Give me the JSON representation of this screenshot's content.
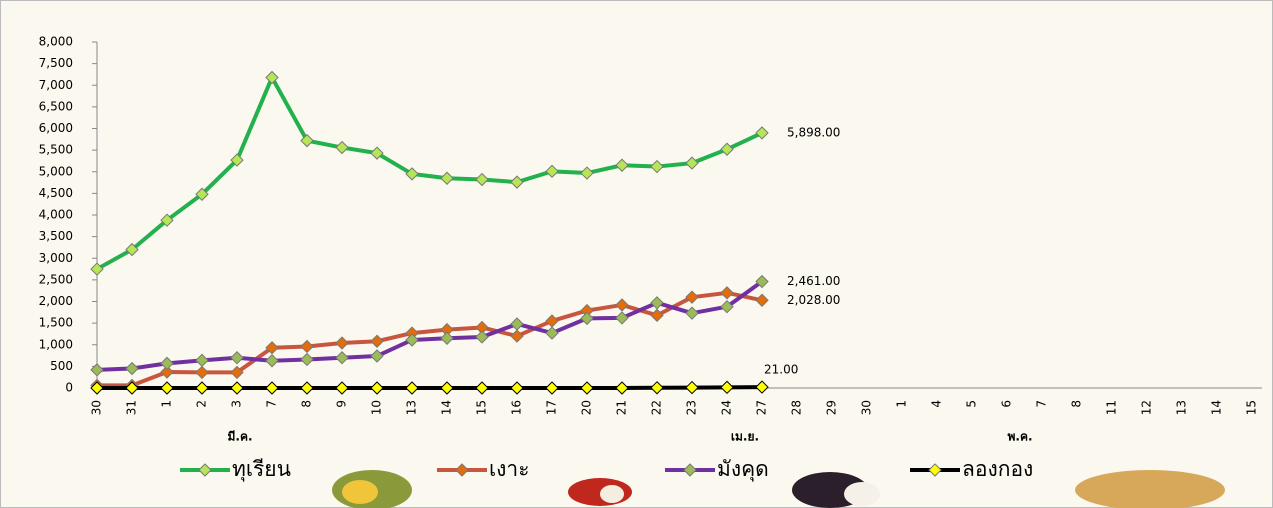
{
  "chart_data": {
    "type": "line",
    "categories": [
      "30",
      "31",
      "1",
      "2",
      "3",
      "7",
      "8",
      "9",
      "10",
      "13",
      "14",
      "15",
      "16",
      "17",
      "20",
      "21",
      "22",
      "23",
      "24",
      "27",
      "28",
      "29",
      "30",
      "1",
      "4",
      "5",
      "6",
      "7",
      "8",
      "11",
      "12",
      "13",
      "14",
      "15"
    ],
    "group_labels": [
      "มี.ค.",
      "เม.ย.",
      "พ.ค."
    ],
    "ylim": [
      0,
      8000
    ],
    "yticks": [
      0,
      500,
      {
        "value": 1000,
        "label": "1,000"
      },
      {
        "value": 1500,
        "label": "1,500"
      },
      {
        "value": 2000,
        "label": "2,000"
      },
      {
        "value": 2500,
        "label": "2,500"
      },
      {
        "value": 3000,
        "label": "3,000"
      },
      {
        "value": 3500,
        "label": "3,500"
      },
      {
        "value": 4000,
        "label": "4,000"
      },
      {
        "value": 4500,
        "label": "4,500"
      },
      {
        "value": 5000,
        "label": "5,000"
      },
      {
        "value": 5500,
        "label": "5,500"
      },
      {
        "value": 6000,
        "label": "6,000"
      },
      {
        "value": 6500,
        "label": "6,500"
      },
      {
        "value": 7000,
        "label": "7,000"
      },
      {
        "value": 7500,
        "label": "7,500"
      },
      {
        "value": 8000,
        "label": "8,000"
      }
    ],
    "series": [
      {
        "name": "ทุเรียน",
        "color": "#22b14c",
        "marker_color": "#b5e655",
        "label_color": "#22b14c",
        "values": [
          2750,
          3200,
          3880,
          4480,
          5270,
          7180,
          5720,
          5560,
          5430,
          4950,
          4850,
          4820,
          4760,
          5010,
          4970,
          5150,
          5120,
          5200,
          5520,
          5898,
          null,
          null,
          null,
          null,
          null,
          null,
          null,
          null,
          null,
          null,
          null,
          null,
          null,
          null
        ],
        "value_labels": [
          null,
          null,
          null,
          null,
          null,
          null,
          null,
          null,
          null,
          null,
          null,
          null,
          null,
          null,
          null,
          null,
          null,
          null,
          null,
          "5,898.00",
          null,
          null,
          null,
          null,
          null,
          null,
          null,
          null,
          null,
          null,
          null,
          null,
          null,
          null
        ]
      },
      {
        "name": "เงาะ",
        "color": "#c8553d",
        "marker_color": "#e46c0a",
        "label_color": "#e8231f",
        "values": [
          60,
          60,
          370,
          360,
          360,
          930,
          960,
          1040,
          1080,
          1270,
          1350,
          1400,
          1200,
          1550,
          1790,
          1920,
          1680,
          2100,
          2200,
          2028,
          null,
          null,
          null,
          null,
          null,
          null,
          null,
          null,
          null,
          null,
          null,
          null,
          null,
          null
        ],
        "value_labels": [
          null,
          null,
          null,
          null,
          null,
          null,
          null,
          null,
          null,
          null,
          null,
          null,
          null,
          null,
          null,
          null,
          null,
          null,
          null,
          "2,028.00",
          null,
          null,
          null,
          null,
          null,
          null,
          null,
          null,
          null,
          null,
          null,
          null,
          null,
          null
        ]
      },
      {
        "name": "มังคุด",
        "color": "#7030a0",
        "marker_color": "#9bbb59",
        "label_color": "#1f3c88",
        "values": [
          420,
          450,
          570,
          640,
          700,
          630,
          660,
          700,
          740,
          1110,
          1150,
          1180,
          1480,
          1270,
          1610,
          1620,
          1970,
          1730,
          1880,
          2461,
          null,
          null,
          null,
          null,
          null,
          null,
          null,
          null,
          null,
          null,
          null,
          null,
          null,
          null
        ],
        "value_labels": [
          null,
          null,
          null,
          null,
          null,
          null,
          null,
          null,
          null,
          null,
          null,
          null,
          null,
          null,
          null,
          null,
          null,
          null,
          null,
          "2,461.00",
          null,
          null,
          null,
          null,
          null,
          null,
          null,
          null,
          null,
          null,
          null,
          null,
          null,
          null
        ]
      },
      {
        "name": "ลองกอง",
        "color": "#000000",
        "marker_color": "#ffff00",
        "label_color": "#000000",
        "values": [
          0,
          0,
          0,
          0,
          0,
          0,
          0,
          0,
          0,
          0,
          0,
          0,
          0,
          0,
          0,
          0,
          5,
          10,
          15,
          21,
          null,
          null,
          null,
          null,
          null,
          null,
          null,
          null,
          null,
          null,
          null,
          null,
          null,
          null
        ],
        "value_labels": [
          null,
          null,
          null,
          null,
          null,
          null,
          null,
          null,
          null,
          null,
          null,
          null,
          null,
          null,
          null,
          null,
          null,
          null,
          null,
          "21.00",
          null,
          null,
          null,
          null,
          null,
          null,
          null,
          null,
          null,
          null,
          null,
          null,
          null,
          null
        ]
      }
    ]
  }
}
